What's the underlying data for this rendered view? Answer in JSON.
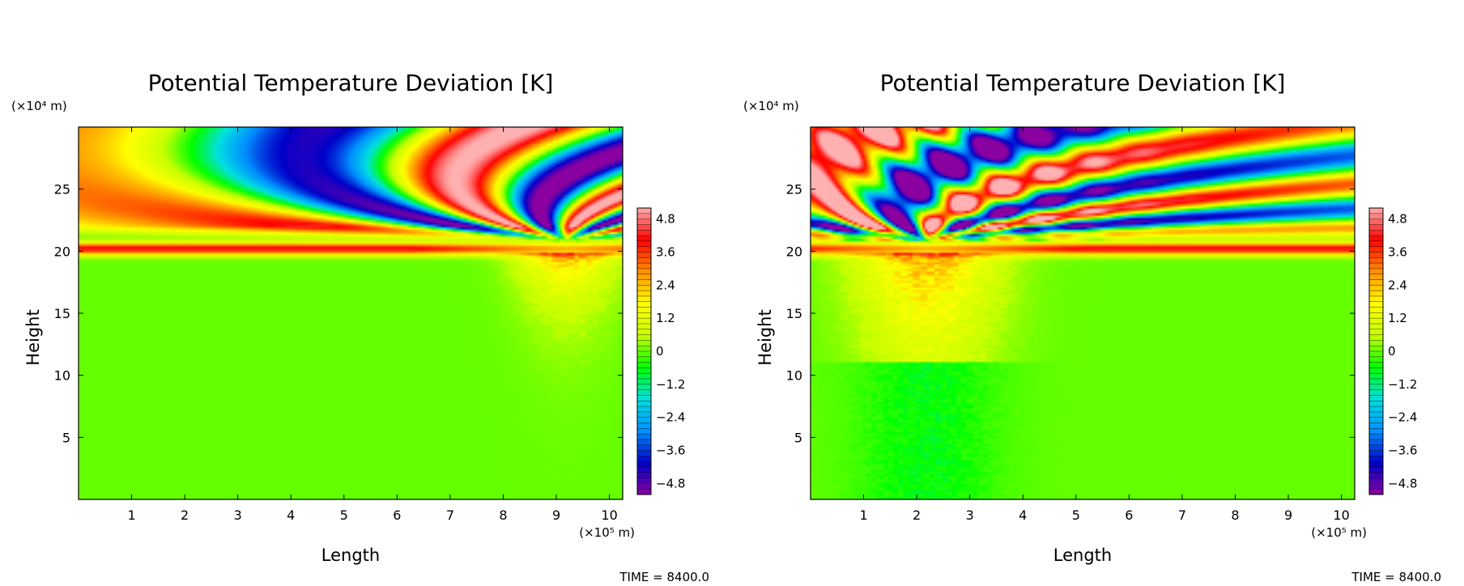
{
  "chart_data": [
    {
      "type": "heatmap",
      "title": "Potential Temperature Deviation [K]",
      "xlabel": "Length",
      "ylabel": "Height",
      "x_unit": "(×10⁵ m)",
      "y_unit": "(×10⁴ m)",
      "xlim": [
        0,
        10.25
      ],
      "ylim": [
        0,
        30
      ],
      "xticks": [
        "1",
        "2",
        "3",
        "4",
        "5",
        "6",
        "7",
        "8",
        "9",
        "10"
      ],
      "yticks": [
        "5",
        "10",
        "15",
        "20",
        "25"
      ],
      "colorbar": {
        "range": [
          -5.2,
          5.2
        ],
        "tick_labels": [
          "4.8",
          "3.6",
          "2.4",
          "1.2",
          "0",
          "−1.2",
          "−2.4",
          "−3.6",
          "−4.8"
        ],
        "tick_values": [
          4.8,
          3.6,
          2.4,
          1.2,
          0,
          -1.2,
          -2.4,
          -3.6,
          -4.8
        ]
      },
      "time_label": "TIME = 8400.0",
      "description_of_field": {
        "background_value": 0,
        "warm_layer_height": [
          19.8,
          20.7
        ],
        "perturbation_center_x": 9.2,
        "upper_layer_values": [
          -5.2,
          5.2
        ]
      }
    },
    {
      "type": "heatmap",
      "title": "Potential Temperature Deviation [K]",
      "xlabel": "Length",
      "ylabel": "Height",
      "x_unit": "(×10⁵ m)",
      "y_unit": "(×10⁴ m)",
      "xlim": [
        0,
        10.25
      ],
      "ylim": [
        0,
        30
      ],
      "xticks": [
        "1",
        "2",
        "3",
        "4",
        "5",
        "6",
        "7",
        "8",
        "9",
        "10"
      ],
      "yticks": [
        "5",
        "10",
        "15",
        "20",
        "25"
      ],
      "colorbar": {
        "range": [
          -5.2,
          5.2
        ],
        "tick_labels": [
          "4.8",
          "3.6",
          "2.4",
          "1.2",
          "0",
          "−1.2",
          "−2.4",
          "−3.6",
          "−4.8"
        ],
        "tick_values": [
          4.8,
          3.6,
          2.4,
          1.2,
          0,
          -1.2,
          -2.4,
          -3.6,
          -4.8
        ]
      },
      "time_label": "TIME = 8400.0",
      "description_of_field": {
        "background_value": 0,
        "warm_layer_height": [
          19.8,
          20.7
        ],
        "perturbation_center_x": 2.2,
        "upper_layer_values": [
          -5.2,
          5.2
        ]
      }
    }
  ],
  "palette": [
    "#8b00a0",
    "#0000c8",
    "#0090ff",
    "#00e0e0",
    "#00ff00",
    "#c8ff00",
    "#ffff00",
    "#ff9000",
    "#ff0000",
    "#ffb0b0"
  ]
}
